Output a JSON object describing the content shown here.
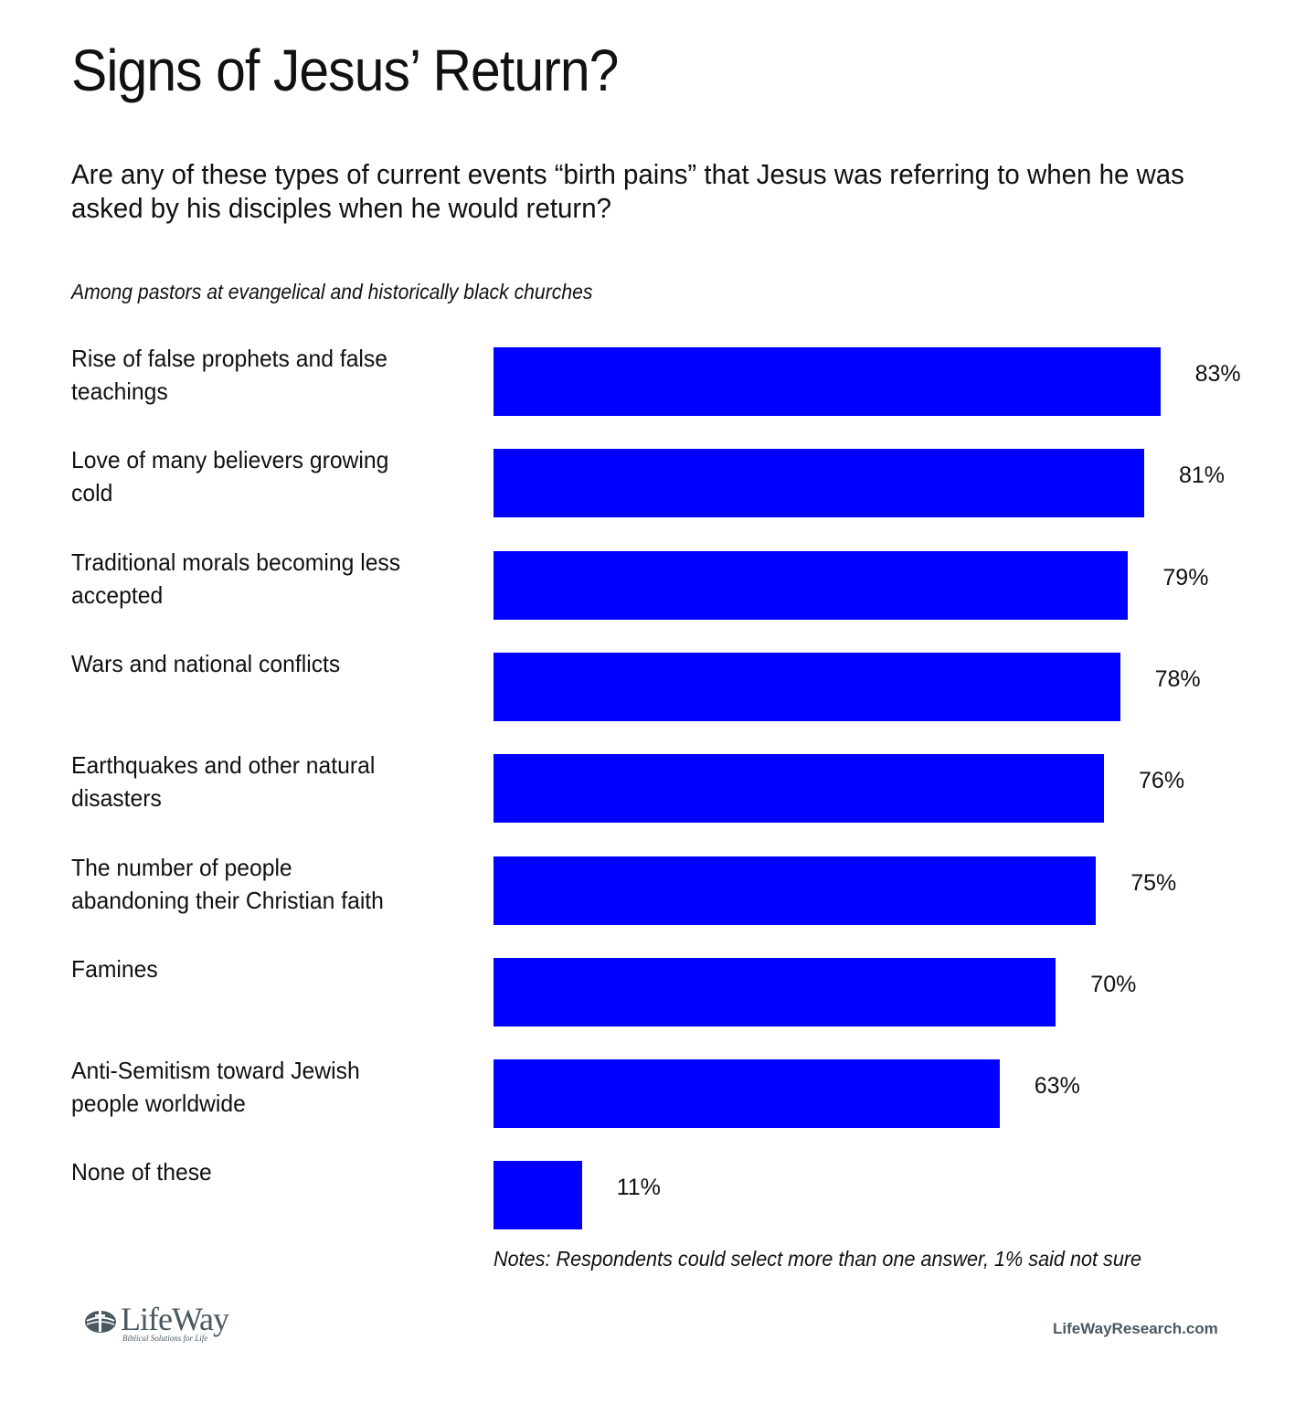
{
  "chart_data": {
    "type": "bar",
    "orientation": "horizontal",
    "title": "Signs of Jesus’ Return?",
    "subtitle": "Are any of these types of current events “birth pains” that Jesus was referring to when he was asked by his disciples when he would return?",
    "population": "Among pastors at evangelical and historically black churches",
    "categories": [
      "Rise of false prophets and false teachings",
      "Love of many believers growing cold",
      "Traditional morals becoming less accepted",
      "Wars and national conflicts",
      "Earthquakes and other natural disasters",
      "The number of people abandoning their Christian faith",
      "Famines",
      "Anti-Semitism toward Jewish people worldwide",
      "None of these"
    ],
    "category_lines": [
      [
        "Rise of false prophets and false",
        "teachings"
      ],
      [
        "Love of many believers growing",
        "cold"
      ],
      [
        "Traditional morals becoming less",
        "accepted"
      ],
      [
        "Wars and national conflicts"
      ],
      [
        "Earthquakes and other natural",
        "disasters"
      ],
      [
        "The number of people",
        "abandoning their Christian faith"
      ],
      [
        "Famines"
      ],
      [
        "Anti-Semitism toward Jewish",
        "people worldwide"
      ],
      [
        "None of these"
      ]
    ],
    "values": [
      83,
      81,
      79,
      78,
      76,
      75,
      70,
      63,
      11
    ],
    "value_labels": [
      "83%",
      "81%",
      "79%",
      "78%",
      "76%",
      "75%",
      "70%",
      "63%",
      "11%"
    ],
    "unit": "%",
    "xlim": [
      0,
      100
    ],
    "xlabel": "",
    "ylabel": "",
    "grid": false,
    "legend": "none",
    "bar_color": "#0000ff",
    "notes": "Notes: Respondents could select more than one answer, 1% said not sure"
  },
  "footer": {
    "logo_text": "LifeWay",
    "logo_tagline": "Biblical Solutions for Life",
    "website": "LifeWayResearch.com",
    "brand_color": "#4a5961"
  }
}
